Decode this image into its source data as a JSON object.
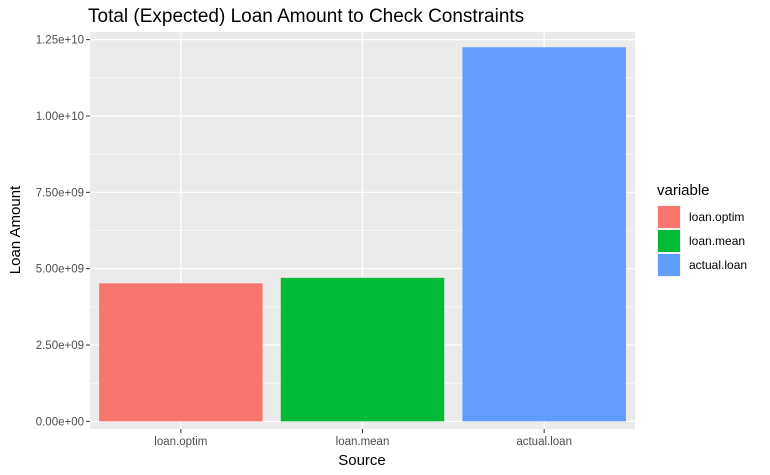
{
  "chart_data": {
    "type": "bar",
    "title": "Total (Expected) Loan Amount to Check Constraints",
    "xlabel": "Source",
    "ylabel": "Loan Amount",
    "categories": [
      "loan.optim",
      "loan.mean",
      "actual.loan"
    ],
    "values": [
      4520000000,
      4700000000,
      12250000000
    ],
    "colors": [
      "#F8766D",
      "#00BA38",
      "#619CFF"
    ],
    "ylim": [
      -250000000,
      12750000000
    ],
    "yticks": [
      0,
      2500000000,
      5000000000,
      7500000000,
      10000000000,
      12500000000
    ],
    "ytick_labels": [
      "0.00e+00",
      "2.50e+09",
      "5.00e+09",
      "7.50e+09",
      "1.00e+10",
      "1.25e+10"
    ],
    "grid": true,
    "background": "#EBEBEB",
    "legend": {
      "title": "variable",
      "position": "right",
      "entries": [
        "loan.optim",
        "loan.mean",
        "actual.loan"
      ]
    }
  }
}
